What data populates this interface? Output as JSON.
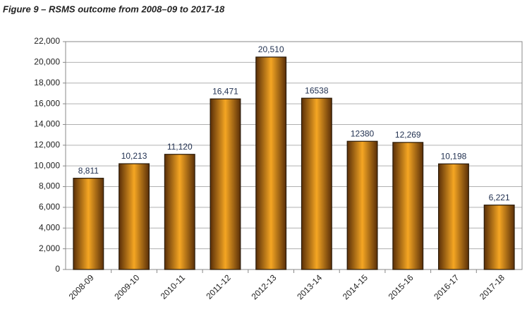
{
  "chart_data": {
    "type": "bar",
    "title": "Figure 9 – RSMS outcome from 2008–09 to 2017-18",
    "categories": [
      "2008-09",
      "2009-10",
      "2010-11",
      "2011-12",
      "2012-13",
      "2013-14",
      "2014-15",
      "2015-16",
      "2016-17",
      "2017-18"
    ],
    "values": [
      8811,
      10213,
      11120,
      16471,
      20510,
      16538,
      12380,
      12269,
      10198,
      6221
    ],
    "value_labels": [
      "8,811",
      "10,213",
      "11,120",
      "16,471",
      "20,510",
      "16538",
      "12380",
      "12,269",
      "10,198",
      "6,221"
    ],
    "color": "#f5a623",
    "ylim": [
      0,
      22000
    ],
    "yticks": [
      0,
      {
        "value": 2000,
        "label": "2,000"
      },
      {
        "value": 4000,
        "label": "4,000"
      },
      {
        "value": 6000,
        "label": "6,000"
      },
      {
        "value": 8000,
        "label": "8,000"
      },
      {
        "value": 10000,
        "label": "10,000"
      },
      {
        "value": 12000,
        "label": "12,000"
      },
      {
        "value": 14000,
        "label": "14,000"
      },
      {
        "value": 16000,
        "label": "16,000"
      },
      {
        "value": 18000,
        "label": "18,000"
      },
      {
        "value": 20000,
        "label": "20,000"
      },
      {
        "value": 22000,
        "label": "22,000"
      }
    ],
    "grid": true
  }
}
